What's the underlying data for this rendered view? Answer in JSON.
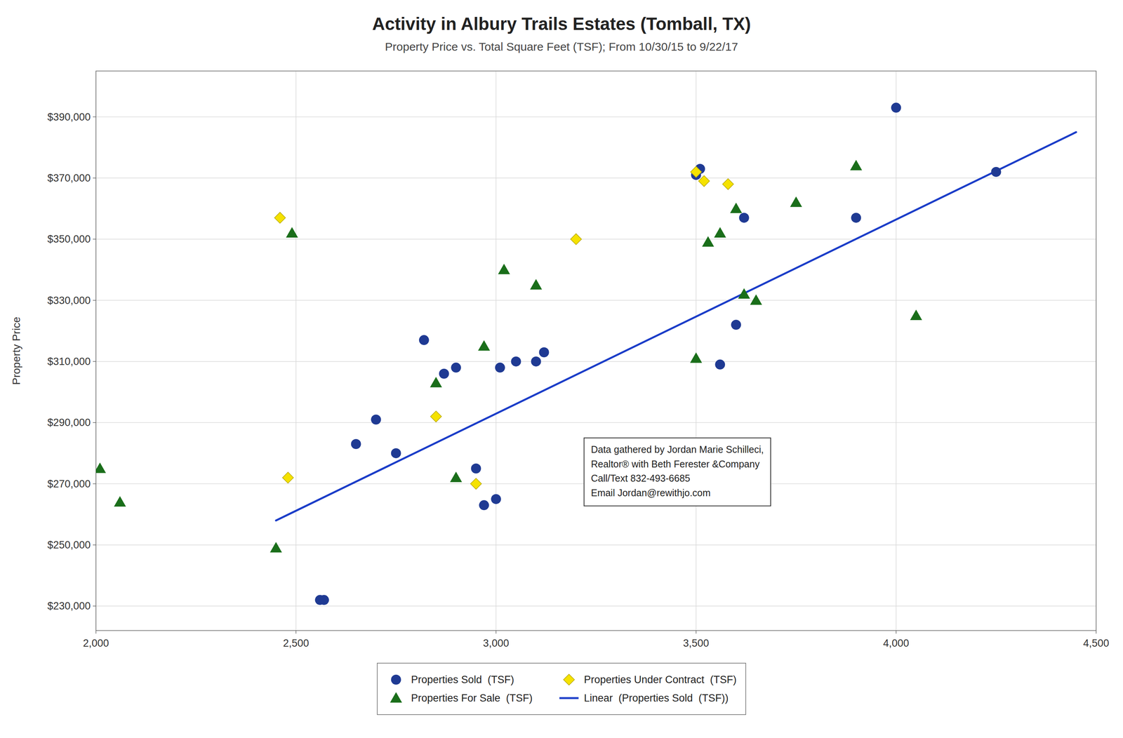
{
  "chart_data": {
    "type": "scatter",
    "title": "Activity in Albury Trails Estates (Tomball, TX)",
    "subtitle": "Property Price vs. Total Square Feet (TSF); From 10/30/15 to 9/22/17",
    "y_label": "Property Price",
    "xlim": [
      2000,
      4500
    ],
    "ylim": [
      222000,
      405000
    ],
    "xticks": [
      {
        "value": 2000,
        "label": "2,000"
      },
      {
        "value": 2500,
        "label": "2,500"
      },
      {
        "value": 3000,
        "label": "3,000"
      },
      {
        "value": 3500,
        "label": "3,500"
      },
      {
        "value": 4000,
        "label": "4,000"
      },
      {
        "value": 4500,
        "label": "4,500"
      }
    ],
    "yticks": [
      {
        "value": 230000,
        "label": "$230,000"
      },
      {
        "value": 250000,
        "label": "$250,000"
      },
      {
        "value": 270000,
        "label": "$270,000"
      },
      {
        "value": 290000,
        "label": "$290,000"
      },
      {
        "value": 310000,
        "label": "$310,000"
      },
      {
        "value": 330000,
        "label": "$330,000"
      },
      {
        "value": 350000,
        "label": "$350,000"
      },
      {
        "value": 370000,
        "label": "$370,000"
      },
      {
        "value": 390000,
        "label": "$390,000"
      }
    ],
    "grid": true,
    "legend": "bottom",
    "series": [
      {
        "name": "Properties Sold  (TSF)",
        "color": "#1f3a93",
        "marker": "circle",
        "x": [
          2560,
          2570,
          2650,
          2700,
          2750,
          2820,
          2870,
          2900,
          2950,
          2970,
          3000,
          3010,
          3050,
          3100,
          3120,
          3500,
          3510,
          3560,
          3600,
          3620,
          3900,
          4000,
          4250
        ],
        "values": [
          232000,
          232000,
          283000,
          291000,
          280000,
          317000,
          306000,
          308000,
          275000,
          263000,
          265000,
          308000,
          310000,
          310000,
          313000,
          371000,
          373000,
          309000,
          322000,
          357000,
          357000,
          393000,
          372000
        ]
      },
      {
        "name": "Properties Under Contract  (TSF)",
        "color": "#f5e200",
        "marker": "diamond",
        "x": [
          2460,
          2480,
          2850,
          2950,
          3200,
          3500,
          3520,
          3580
        ],
        "values": [
          357000,
          272000,
          292000,
          270000,
          350000,
          372000,
          369000,
          368000
        ]
      },
      {
        "name": "Properties For Sale  (TSF)",
        "color": "#1a6e1a",
        "marker": "triangle",
        "x": [
          2010,
          2060,
          2450,
          2490,
          2850,
          2900,
          2970,
          3020,
          3100,
          3500,
          3530,
          3560,
          3600,
          3620,
          3650,
          3750,
          3900,
          4050
        ],
        "values": [
          275000,
          264000,
          249000,
          352000,
          303000,
          272000,
          315000,
          340000,
          335000,
          311000,
          349000,
          352000,
          360000,
          332000,
          330000,
          362000,
          374000,
          325000
        ]
      },
      {
        "name": "Linear  (Properties Sold  (TSF))",
        "type": "line",
        "color": "#1a3cc8",
        "line_style": "solid",
        "x": [
          2450,
          4450
        ],
        "values": [
          258000,
          385000
        ]
      }
    ],
    "annotations": [
      {
        "text": "Data gathered by Jordan Marie Schilleci,\nRealtor® with Beth Ferester &Company\nCall/Text 832-493-6685\nEmail Jordan@rewithjo.com",
        "x": 3220,
        "y": 285000
      }
    ]
  }
}
